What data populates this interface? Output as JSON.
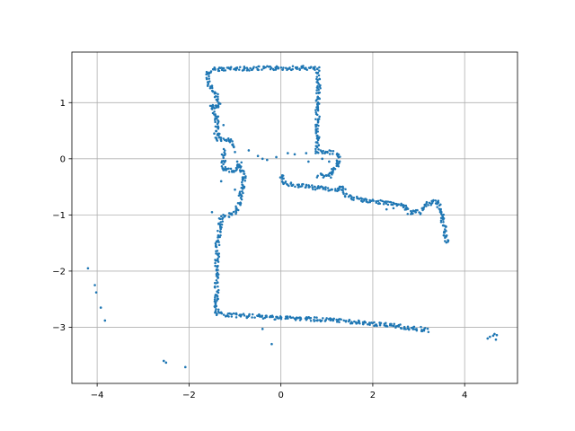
{
  "chart_data": {
    "type": "scatter",
    "title": "",
    "xlabel": "",
    "ylabel": "",
    "xlim": [
      -4.55,
      5.15
    ],
    "ylim": [
      -4.0,
      1.9
    ],
    "x_ticks": [
      -4,
      -2,
      0,
      2,
      4
    ],
    "y_ticks": [
      1,
      0,
      -1,
      -2,
      -3
    ],
    "x_tick_labels": [
      "−4",
      "−2",
      "0",
      "2",
      "4"
    ],
    "y_tick_labels": [
      "1",
      "0",
      "−1",
      "−2",
      "−3"
    ],
    "grid": true,
    "marker_color": "#1f77b4",
    "path_segments": [
      [
        [
          -1.6,
          1.52
        ],
        [
          -1.4,
          1.6
        ],
        [
          0.5,
          1.62
        ],
        [
          0.8,
          1.6
        ],
        [
          0.82,
          1.3
        ],
        [
          0.8,
          0.9
        ],
        [
          0.8,
          0.5
        ],
        [
          0.8,
          0.12
        ],
        [
          1.15,
          0.12
        ]
      ],
      [
        [
          -1.6,
          1.52
        ],
        [
          -1.55,
          1.3
        ],
        [
          -1.4,
          1.1
        ],
        [
          -1.35,
          0.9
        ],
        [
          -1.5,
          0.95
        ],
        [
          -1.4,
          0.7
        ],
        [
          -1.38,
          0.5
        ],
        [
          -1.35,
          0.4
        ],
        [
          -1.4,
          0.35
        ]
      ],
      [
        [
          -1.4,
          0.35
        ],
        [
          -1.1,
          0.35
        ],
        [
          -1.05,
          0.2
        ]
      ],
      [
        [
          -1.25,
          0.15
        ],
        [
          -1.25,
          -0.2
        ],
        [
          -1.0,
          -0.2
        ],
        [
          -0.9,
          -0.1
        ]
      ],
      [
        [
          -0.9,
          -0.1
        ],
        [
          -0.8,
          -0.3
        ],
        [
          -0.85,
          -0.6
        ],
        [
          -0.95,
          -0.9
        ],
        [
          -1.1,
          -1.0
        ],
        [
          -1.3,
          -1.05
        ]
      ],
      [
        [
          -1.3,
          -1.05
        ],
        [
          -1.38,
          -1.5
        ],
        [
          -1.4,
          -2.0
        ],
        [
          -1.4,
          -2.5
        ],
        [
          -1.4,
          -2.75
        ],
        [
          -1.2,
          -2.78
        ],
        [
          0.0,
          -2.83
        ],
        [
          0.6,
          -2.85
        ],
        [
          1.5,
          -2.9
        ],
        [
          2.5,
          -2.98
        ],
        [
          3.2,
          -3.05
        ]
      ],
      [
        [
          0.0,
          -0.3
        ],
        [
          0.1,
          -0.45
        ],
        [
          0.6,
          -0.5
        ],
        [
          1.2,
          -0.55
        ],
        [
          1.35,
          -0.5
        ],
        [
          1.4,
          -0.65
        ],
        [
          1.8,
          -0.75
        ],
        [
          2.5,
          -0.8
        ],
        [
          2.7,
          -0.85
        ],
        [
          2.8,
          -0.95
        ],
        [
          3.0,
          -0.95
        ],
        [
          3.2,
          -0.8
        ],
        [
          3.4,
          -0.75
        ],
        [
          3.5,
          -0.95
        ],
        [
          3.55,
          -1.2
        ],
        [
          3.62,
          -1.5
        ]
      ],
      [
        [
          1.25,
          0.1
        ],
        [
          1.25,
          -0.1
        ],
        [
          1.05,
          -0.3
        ],
        [
          0.8,
          -0.3
        ]
      ]
    ],
    "scatter_points": [
      [
        -4.2,
        -1.95
      ],
      [
        -4.05,
        -2.25
      ],
      [
        -4.02,
        -2.38
      ],
      [
        -3.92,
        -2.65
      ],
      [
        -3.83,
        -2.88
      ],
      [
        -2.55,
        -3.6
      ],
      [
        -2.5,
        -3.63
      ],
      [
        -2.08,
        -3.71
      ],
      [
        -0.4,
        -3.03
      ],
      [
        -0.2,
        -3.3
      ],
      [
        -1.0,
        0.12
      ],
      [
        -0.95,
        -0.05
      ],
      [
        -0.7,
        0.15
      ],
      [
        -0.5,
        0.05
      ],
      [
        -0.4,
        0.0
      ],
      [
        -0.3,
        -0.02
      ],
      [
        -0.1,
        0.03
      ],
      [
        0.15,
        0.1
      ],
      [
        0.3,
        0.08
      ],
      [
        0.55,
        0.1
      ],
      [
        0.6,
        -0.05
      ],
      [
        0.9,
        0.0
      ],
      [
        1.05,
        -0.05
      ],
      [
        -1.25,
        0.6
      ],
      [
        -1.45,
        0.45
      ],
      [
        -1.3,
        -0.4
      ],
      [
        -1.0,
        -0.55
      ],
      [
        -1.5,
        -0.95
      ],
      [
        2.3,
        -0.9
      ],
      [
        2.45,
        -0.88
      ],
      [
        4.5,
        -3.2
      ],
      [
        4.55,
        -3.17
      ],
      [
        4.62,
        -3.15
      ],
      [
        4.68,
        -3.22
      ],
      [
        4.7,
        -3.14
      ],
      [
        4.65,
        -3.12
      ]
    ]
  }
}
